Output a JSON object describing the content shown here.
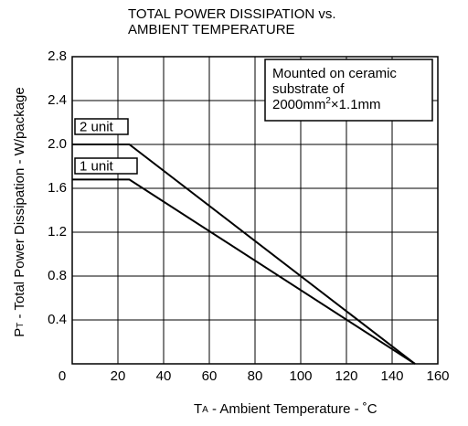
{
  "chart_data": {
    "type": "line",
    "title": [
      "TOTAL POWER DISSIPATION vs.",
      "AMBIENT TEMPERATURE"
    ],
    "xlabel": [
      "T",
      "A",
      " - Ambient Temperature  - ˚C"
    ],
    "ylabel": [
      "P",
      "T",
      " - Total Power Dissipation  -  W/package"
    ],
    "annotation": {
      "lines": [
        "Mounted on ceramic",
        "substrate of"
      ],
      "last": [
        "2000mm",
        "2",
        "×1.1mm"
      ]
    },
    "xlim": [
      0,
      160
    ],
    "xticks": [
      0,
      20,
      40,
      60,
      80,
      100,
      120,
      140,
      160
    ],
    "ylim": [
      0,
      2.8
    ],
    "yticks": [
      0.4,
      0.8,
      1.2,
      1.6,
      {
        "value": 2.0,
        "label": "2.0"
      },
      2.4,
      2.8
    ],
    "grid": true,
    "series": [
      {
        "name": "2 unit",
        "color": "#000000",
        "x": [
          0,
          25,
          150
        ],
        "values": [
          2.0,
          2.0,
          0
        ]
      },
      {
        "name": "1 unit",
        "color": "#000000",
        "x": [
          0,
          25,
          150
        ],
        "values": [
          1.68,
          1.68,
          0
        ]
      }
    ]
  }
}
